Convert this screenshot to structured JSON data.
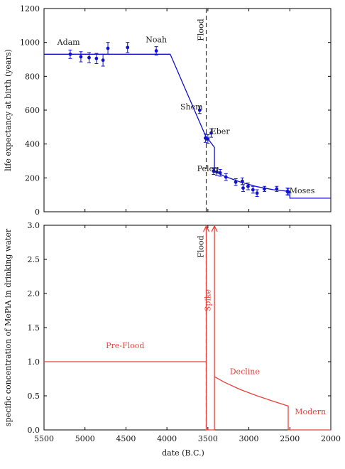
{
  "chart_data": [
    {
      "type": "line",
      "ylabel": "life expectancy at birth (years)",
      "xlabel": "",
      "xlim": [
        5500,
        2000
      ],
      "ylim": [
        0,
        1200
      ],
      "yticks": [
        0,
        200,
        400,
        600,
        800,
        1000,
        1200
      ],
      "grid": false,
      "colors": {
        "series": "#1010d0"
      },
      "points": [
        {
          "x": 5180,
          "y": 930,
          "err": 25
        },
        {
          "x": 5050,
          "y": 915,
          "err": 30
        },
        {
          "x": 4950,
          "y": 910,
          "err": 30
        },
        {
          "x": 4860,
          "y": 905,
          "err": 30
        },
        {
          "x": 4780,
          "y": 895,
          "err": 35
        },
        {
          "x": 4720,
          "y": 965,
          "err": 35
        },
        {
          "x": 4480,
          "y": 970,
          "err": 30
        },
        {
          "x": 4130,
          "y": 950,
          "err": 25
        },
        {
          "x": 3600,
          "y": 600,
          "err": 20
        },
        {
          "x": 3530,
          "y": 435,
          "err": 25
        },
        {
          "x": 3500,
          "y": 430,
          "err": 25
        },
        {
          "x": 3460,
          "y": 465,
          "err": 25
        },
        {
          "x": 3430,
          "y": 240,
          "err": 20
        },
        {
          "x": 3390,
          "y": 235,
          "err": 20
        },
        {
          "x": 3350,
          "y": 230,
          "err": 20
        },
        {
          "x": 3280,
          "y": 205,
          "err": 20
        },
        {
          "x": 3160,
          "y": 175,
          "err": 20
        },
        {
          "x": 3080,
          "y": 180,
          "err": 20
        },
        {
          "x": 3070,
          "y": 140,
          "err": 20
        },
        {
          "x": 3010,
          "y": 150,
          "err": 20
        },
        {
          "x": 2950,
          "y": 130,
          "err": 20
        },
        {
          "x": 2900,
          "y": 110,
          "err": 20
        },
        {
          "x": 2810,
          "y": 135,
          "err": 15
        },
        {
          "x": 2660,
          "y": 135,
          "err": 15
        },
        {
          "x": 2530,
          "y": 120,
          "err": 20
        },
        {
          "x": 2520,
          "y": 118,
          "err": 20
        }
      ],
      "model": [
        [
          5500,
          930
        ],
        [
          3960,
          930
        ],
        [
          3530,
          450
        ],
        [
          3420,
          380
        ],
        [
          3420,
          240
        ],
        [
          3300,
          210
        ],
        [
          3100,
          175
        ],
        [
          2900,
          148
        ],
        [
          2700,
          130
        ],
        [
          2500,
          120
        ],
        [
          2500,
          80
        ],
        [
          2000,
          80
        ]
      ],
      "annotations": [
        {
          "text": "Adam",
          "x": 5200,
          "y": 985
        },
        {
          "text": "Noah",
          "x": 4130,
          "y": 1000
        },
        {
          "text": "Shem",
          "x": 3700,
          "y": 605
        },
        {
          "text": "Eber",
          "x": 3350,
          "y": 460
        },
        {
          "text": "Peleg",
          "x": 3500,
          "y": 240
        },
        {
          "text": "Moses",
          "x": 2350,
          "y": 110
        }
      ],
      "flood_line": {
        "x": 3520,
        "label": "Flood"
      }
    },
    {
      "type": "line",
      "ylabel": "specific concentration of MePiA in drinking water",
      "xlabel": "date (B.C.)",
      "xlim": [
        5500,
        2000
      ],
      "ylim": [
        0.0,
        3.0
      ],
      "xticks": [
        5500,
        5000,
        4500,
        4000,
        3500,
        3000,
        2500,
        2000
      ],
      "yticks": [
        0.0,
        0.5,
        1.0,
        1.5,
        2.0,
        2.5,
        3.0
      ],
      "grid": false,
      "colors": {
        "series": "#e8413a"
      },
      "model": [
        [
          5500,
          1.0
        ],
        [
          3520,
          1.0
        ],
        [
          3520,
          3.0
        ],
        [
          3520,
          0.0
        ],
        [
          3420,
          0.0
        ],
        [
          3420,
          3.0
        ],
        [
          3420,
          0.78
        ],
        [
          3300,
          0.7
        ],
        [
          3100,
          0.59
        ],
        [
          2900,
          0.5
        ],
        [
          2700,
          0.42
        ],
        [
          2520,
          0.35
        ],
        [
          2520,
          0.0
        ],
        [
          2000,
          0.0
        ]
      ],
      "arrows": [
        {
          "x": 3520,
          "y": 3.0
        },
        {
          "x": 3420,
          "y": 3.0
        }
      ],
      "annotations": [
        {
          "text": "Pre-Flood",
          "x": 4510,
          "y": 1.2
        },
        {
          "text": "Decline",
          "x": 3050,
          "y": 0.82
        },
        {
          "text": "Modern",
          "x": 2250,
          "y": 0.23
        }
      ],
      "flood_line": {
        "x": 3520,
        "label": "Flood"
      },
      "spike_label": {
        "text": "Spike",
        "x": 3470,
        "y": 1.9
      }
    }
  ]
}
